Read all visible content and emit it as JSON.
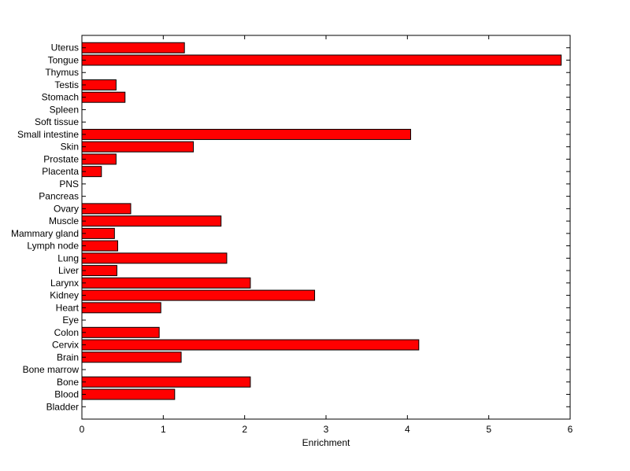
{
  "chart_data": {
    "type": "bar",
    "orientation": "horizontal",
    "title": "",
    "xlabel": "Enrichment",
    "ylabel": "",
    "xlim": [
      0,
      6
    ],
    "xticks": [
      0,
      1,
      2,
      3,
      4,
      5,
      6
    ],
    "grid": false,
    "legend": "none",
    "bar_color": "#ff0000",
    "bar_edge_color": "#000000",
    "categories": [
      "Bladder",
      "Blood",
      "Bone",
      "Bone marrow",
      "Brain",
      "Cervix",
      "Colon",
      "Eye",
      "Heart",
      "Kidney",
      "Larynx",
      "Liver",
      "Lung",
      "Lymph node",
      "Mammary gland",
      "Muscle",
      "Ovary",
      "Pancreas",
      "PNS",
      "Placenta",
      "Prostate",
      "Skin",
      "Small intestine",
      "Soft tissue",
      "Spleen",
      "Stomach",
      "Testis",
      "Thymus",
      "Tongue",
      "Uterus"
    ],
    "values": [
      0,
      1.14,
      2.07,
      0,
      1.22,
      4.14,
      0.95,
      0,
      0.97,
      2.86,
      2.07,
      0.43,
      1.78,
      0.44,
      0.4,
      1.71,
      0.6,
      0,
      0,
      0.24,
      0.42,
      1.37,
      4.04,
      0,
      0,
      0.53,
      0.42,
      0,
      5.89,
      1.26
    ]
  }
}
